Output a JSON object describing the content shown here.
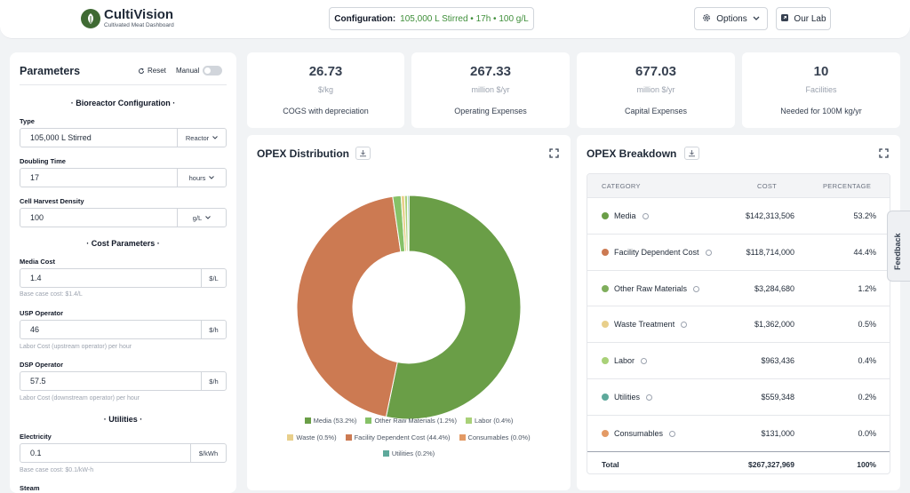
{
  "app": {
    "title": "CultiVision",
    "subtitle": "Cultivated Meat Dashboard"
  },
  "header": {
    "config_label": "Configuration:",
    "config_value": "105,000 L Stirred • 17h • 100 g/L",
    "options_label": "Options",
    "lab_label": "Our Lab"
  },
  "sidebar": {
    "title": "Parameters",
    "reset_label": "Reset",
    "manual_label": "Manual",
    "sections": {
      "bioreactor": "· Bioreactor Configuration ·",
      "cost": "· Cost Parameters ·",
      "utilities": "· Utilities ·"
    },
    "fields": {
      "type": {
        "label": "Type",
        "value": "105,000 L Stirred",
        "unit": "Reactor"
      },
      "doubling": {
        "label": "Doubling Time",
        "value": "17",
        "unit": "hours"
      },
      "density": {
        "label": "Cell Harvest Density",
        "value": "100",
        "unit": "g/L"
      },
      "media": {
        "label": "Media Cost",
        "value": "1.4",
        "unit": "$/L",
        "hint": "Base case cost: $1.4/L"
      },
      "usp": {
        "label": "USP Operator",
        "value": "46",
        "unit": "$/h",
        "hint": "Labor Cost (upstream operator) per hour"
      },
      "dsp": {
        "label": "DSP Operator",
        "value": "57.5",
        "unit": "$/h",
        "hint": "Labor Cost (downstream operator) per hour"
      },
      "electricity": {
        "label": "Electricity",
        "value": "0.1",
        "unit": "$/kWh",
        "hint": "Base case cost: $0.1/kW-h"
      },
      "steam": {
        "label": "Steam"
      }
    }
  },
  "stats": [
    {
      "value": "26.73",
      "unit": "$/kg",
      "label": "COGS with depreciation"
    },
    {
      "value": "267.33",
      "unit": "million $/yr",
      "label": "Operating Expenses"
    },
    {
      "value": "677.03",
      "unit": "million $/yr",
      "label": "Capital Expenses"
    },
    {
      "value": "10",
      "unit": "Facilities",
      "label": "Needed for 100M kg/yr"
    }
  ],
  "opex_distribution": {
    "title": "OPEX Distribution"
  },
  "chart_data": {
    "type": "pie",
    "title": "OPEX Distribution",
    "donut": true,
    "categories": [
      "Media",
      "Facility Dependent Cost",
      "Other Raw Materials",
      "Waste",
      "Labor",
      "Utilities",
      "Consumables"
    ],
    "values": [
      53.2,
      44.4,
      1.2,
      0.5,
      0.4,
      0.2,
      0.0
    ],
    "colors": [
      "#6a9e47",
      "#cc7a52",
      "#86c167",
      "#e8cf8b",
      "#a9d178",
      "#5ea99b",
      "#e39a65"
    ],
    "legend": [
      [
        "Media (53.2%)",
        "Other Raw Materials (1.2%)",
        "Labor (0.4%)"
      ],
      [
        "Waste (0.5%)",
        "Facility Dependent Cost (44.4%)",
        "Consumables (0.0%)"
      ],
      [
        "Utilities (0.2%)"
      ]
    ],
    "legend_colors": [
      [
        "#6a9e47",
        "#86c167",
        "#a9d178"
      ],
      [
        "#e8cf8b",
        "#cc7a52",
        "#e39a65"
      ],
      [
        "#5ea99b"
      ]
    ]
  },
  "opex_breakdown": {
    "title": "OPEX Breakdown",
    "headers": {
      "category": "CATEGORY",
      "cost": "COST",
      "percentage": "PERCENTAGE"
    },
    "rows": [
      {
        "category": "Media",
        "cost": "$142,313,506",
        "pct": "53.2%",
        "color": "#6a9e47"
      },
      {
        "category": "Facility Dependent Cost",
        "cost": "$118,714,000",
        "pct": "44.4%",
        "color": "#cc7a52"
      },
      {
        "category": "Other Raw Materials",
        "cost": "$3,284,680",
        "pct": "1.2%",
        "color": "#7fae5c"
      },
      {
        "category": "Waste Treatment",
        "cost": "$1,362,000",
        "pct": "0.5%",
        "color": "#e8cf8b"
      },
      {
        "category": "Labor",
        "cost": "$963,436",
        "pct": "0.4%",
        "color": "#a9d178"
      },
      {
        "category": "Utilities",
        "cost": "$559,348",
        "pct": "0.2%",
        "color": "#5ea99b"
      },
      {
        "category": "Consumables",
        "cost": "$131,000",
        "pct": "0.0%",
        "color": "#e39a65"
      }
    ],
    "total": {
      "label": "Total",
      "cost": "$267,327,969",
      "pct": "100%"
    }
  },
  "feedback_label": "Feedback"
}
